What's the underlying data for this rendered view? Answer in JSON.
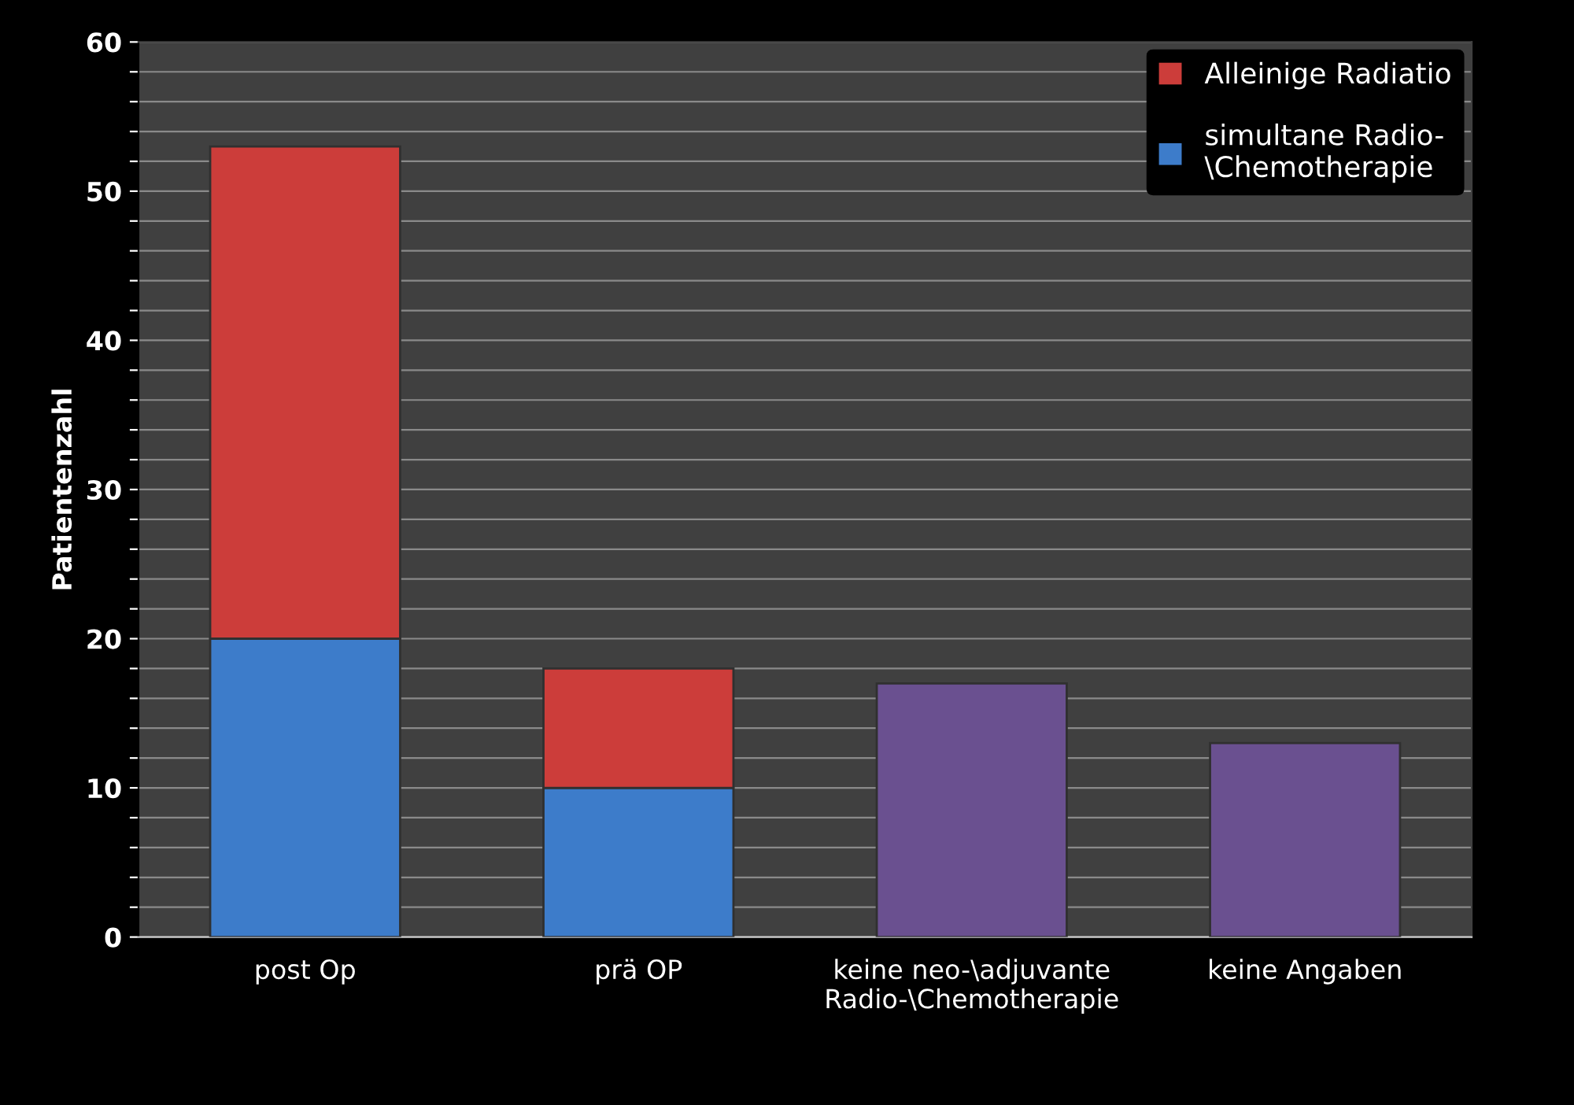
{
  "chart_data": {
    "type": "bar",
    "stacked": true,
    "ylabel": "Patientenzahl",
    "categories": [
      "post Op",
      "prä OP",
      "keine neo-\\adjuvante\nRadio-\\Chemotherapie",
      "keine Angaben"
    ],
    "series": [
      {
        "name": "simultane Radio-\n\\Chemotherapie",
        "color": "#3d7cca",
        "values": [
          20,
          10,
          null,
          null
        ]
      },
      {
        "name": "Alleinige Radiatio",
        "color": "#cc3d3a",
        "values": [
          33,
          8,
          null,
          null
        ]
      },
      {
        "color": "#6a5090",
        "values": [
          null,
          null,
          17,
          13
        ]
      }
    ],
    "ylim": [
      0,
      60
    ],
    "yticks": [
      0,
      {
        "value": 2,
        "label": null
      },
      {
        "value": 4,
        "label": null
      },
      {
        "value": 6,
        "label": null
      },
      {
        "value": 8,
        "label": null
      },
      10,
      {
        "value": 12,
        "label": null
      },
      {
        "value": 14,
        "label": null
      },
      {
        "value": 16,
        "label": null
      },
      {
        "value": 18,
        "label": null
      },
      20,
      {
        "value": 22,
        "label": null
      },
      {
        "value": 24,
        "label": null
      },
      {
        "value": 26,
        "label": null
      },
      {
        "value": 28,
        "label": null
      },
      30,
      {
        "value": 32,
        "label": null
      },
      {
        "value": 34,
        "label": null
      },
      {
        "value": 36,
        "label": null
      },
      {
        "value": 38,
        "label": null
      },
      40,
      {
        "value": 42,
        "label": null
      },
      {
        "value": 44,
        "label": null
      },
      {
        "value": 46,
        "label": null
      },
      {
        "value": 48,
        "label": null
      },
      50,
      {
        "value": 52,
        "label": null
      },
      {
        "value": 54,
        "label": null
      },
      {
        "value": 56,
        "label": null
      },
      {
        "value": 58,
        "label": null
      },
      60
    ],
    "grid": "y",
    "legend": "top right"
  }
}
